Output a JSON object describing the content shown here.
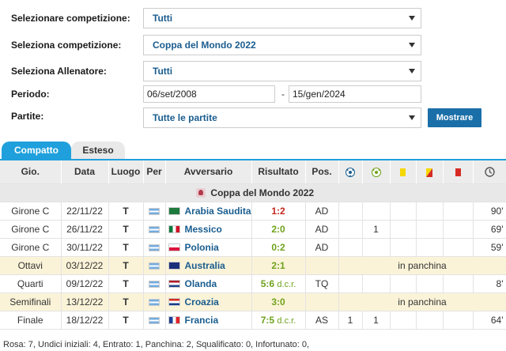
{
  "filters": {
    "comp1": {
      "label": "Selezionare competizione:",
      "value": "Tutti"
    },
    "comp2": {
      "label": "Seleziona competizione:",
      "value": "Coppa del Mondo 2022"
    },
    "coach": {
      "label": "Seleziona Allenatore:",
      "value": "Tutti"
    },
    "period": {
      "label": "Periodo:",
      "from": "06/set/2008",
      "sep": "-",
      "to": "15/gen/2024"
    },
    "matches": {
      "label": "Partite:",
      "value": "Tutte le partite"
    },
    "show_button": "Mostrare"
  },
  "tabs": {
    "compact": "Compatto",
    "extended": "Esteso"
  },
  "columns": {
    "round": "Gio.",
    "date": "Data",
    "venue": "Luogo",
    "for": "Per",
    "opponent": "Avversario",
    "result": "Risultato",
    "position": "Pos."
  },
  "header_icons": [
    "ball-icon",
    "assist-ball-icon",
    "yellow-card-icon",
    "yellow-red-card-icon",
    "red-card-icon",
    "clock-icon"
  ],
  "competition": "Coppa del Mondo 2022",
  "rows": [
    {
      "round": "Girone C",
      "date": "22/11/22",
      "venue": "T",
      "opponent": "Arabia Saudita",
      "result": "1:2",
      "result_type": "loss",
      "pos": "AD",
      "goals": "",
      "assists": "",
      "yellow": "",
      "yellowred": "",
      "red": "",
      "minutes": "90'"
    },
    {
      "round": "Girone C",
      "date": "26/11/22",
      "venue": "T",
      "opponent": "Messico",
      "result": "2:0",
      "result_type": "win",
      "pos": "AD",
      "goals": "",
      "assists": "1",
      "yellow": "",
      "yellowred": "",
      "red": "",
      "minutes": "69'"
    },
    {
      "round": "Girone C",
      "date": "30/11/22",
      "venue": "T",
      "opponent": "Polonia",
      "result": "0:2",
      "result_type": "win",
      "pos": "AD",
      "goals": "",
      "assists": "",
      "yellow": "",
      "yellowred": "",
      "red": "",
      "minutes": "59'"
    },
    {
      "round": "Ottavi",
      "date": "03/12/22",
      "venue": "T",
      "opponent": "Australia",
      "result": "2:1",
      "result_type": "win",
      "pos": "",
      "bench": "in panchina",
      "highlight": true
    },
    {
      "round": "Quarti",
      "date": "09/12/22",
      "venue": "T",
      "opponent": "Olanda",
      "result": "5:6",
      "result_suffix": "d.c.r.",
      "result_type": "win",
      "pos": "TQ",
      "goals": "",
      "assists": "",
      "yellow": "",
      "yellowred": "",
      "red": "",
      "minutes": "8'"
    },
    {
      "round": "Semifinali",
      "date": "13/12/22",
      "venue": "T",
      "opponent": "Croazia",
      "result": "3:0",
      "result_type": "win",
      "pos": "",
      "bench": "in panchina",
      "highlight": true
    },
    {
      "round": "Finale",
      "date": "18/12/22",
      "venue": "T",
      "opponent": "Francia",
      "result": "7:5",
      "result_suffix": "d.c.r.",
      "result_type": "win",
      "pos": "AS",
      "goals": "1",
      "assists": "1",
      "yellow": "",
      "yellowred": "",
      "red": "",
      "minutes": "64'"
    }
  ],
  "footer": "Rosa: 7, Undici iniziali: 4, Entrato: 1, Panchina: 2, Squalificato: 0, Infortunato: 0,"
}
